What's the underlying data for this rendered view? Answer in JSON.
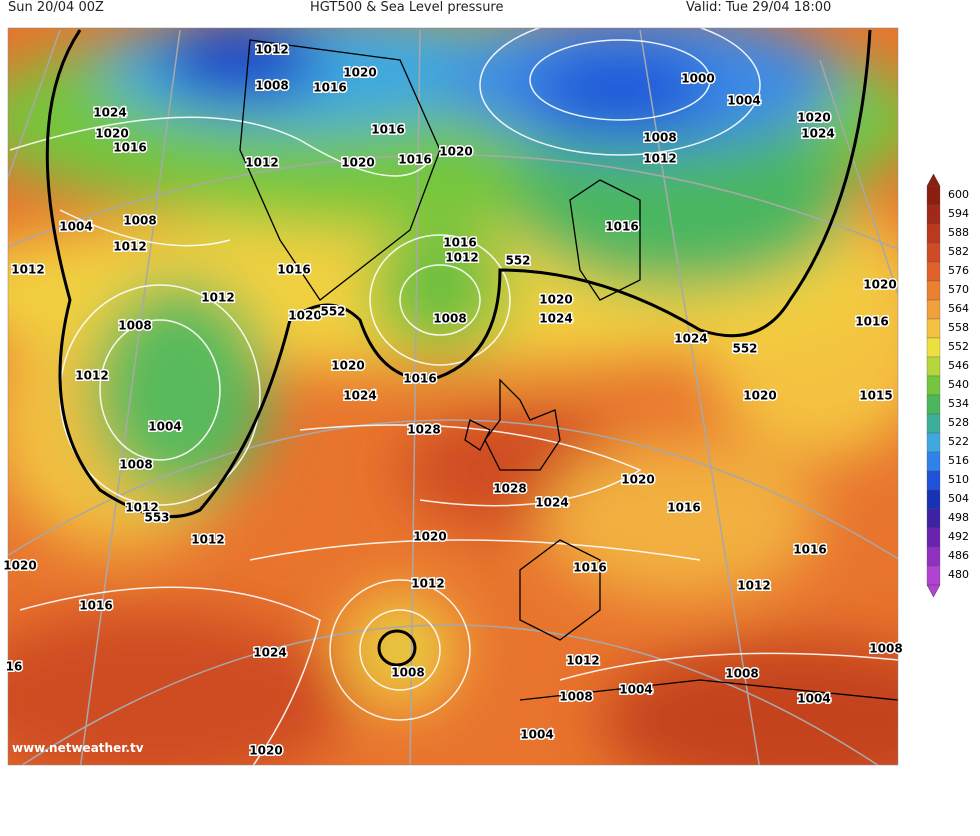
{
  "header": {
    "run": "Sun 20/04 00Z",
    "title": "HGT500 & Sea Level pressure",
    "valid": "Valid: Tue 29/04 18:00"
  },
  "watermark": "www.netweather.tv",
  "isobar_labels": [
    "1012",
    "1020",
    "1008",
    "1016",
    "1024",
    "1020",
    "1016",
    "1016",
    "1016",
    "1020",
    "1020",
    "1012",
    "1000",
    "1004",
    "1020",
    "1024",
    "1008",
    "1012",
    "1008",
    "1004",
    "1012",
    "1012",
    "1016",
    "1012",
    "1016",
    "1016",
    "1012",
    "552",
    "1008",
    "1020",
    "552",
    "1008",
    "1020",
    "1024",
    "1024",
    "552",
    "1020",
    "1016",
    "1012",
    "1020",
    "1016",
    "1024",
    "1020",
    "1015",
    "1004",
    "1028",
    "1008",
    "1020",
    "1028",
    "1024",
    "1016",
    "1012",
    "553",
    "1012",
    "1020",
    "1016",
    "1020",
    "1016",
    "1012",
    "1012",
    "1016",
    "1024",
    "1012",
    "1008",
    "1008",
    "1008",
    "1004",
    "1008",
    "16",
    "1004",
    "1004",
    "1020"
  ],
  "colorbar": {
    "levels": [
      600,
      594,
      588,
      582,
      576,
      570,
      564,
      558,
      552,
      546,
      540,
      534,
      528,
      522,
      516,
      510,
      504,
      498,
      492,
      486,
      480
    ],
    "colors": [
      "#8b1e10",
      "#a32818",
      "#bb3a1e",
      "#cf4b24",
      "#e0622a",
      "#ea8030",
      "#f2a03a",
      "#f4c240",
      "#ece040",
      "#b6d63e",
      "#74c63e",
      "#4cb65c",
      "#3eae9c",
      "#3ea8e0",
      "#2f82ea",
      "#1f52d8",
      "#1832b6",
      "#3e22a6",
      "#6c22b0",
      "#9030c0",
      "#b044d0"
    ]
  }
}
